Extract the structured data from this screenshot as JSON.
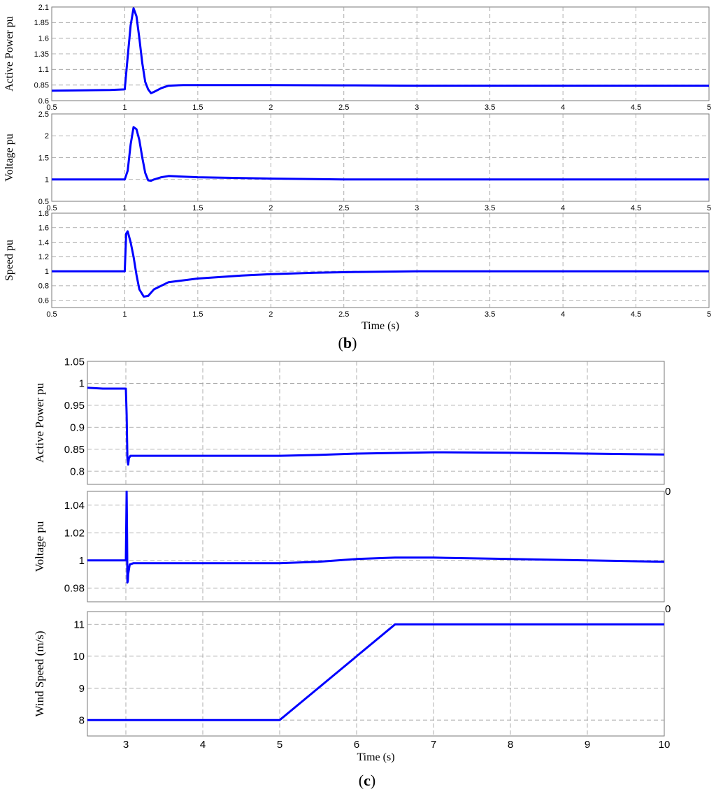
{
  "figure": {
    "group_b_label": "(b)",
    "group_b_letter": "b",
    "group_c_label": "(c)",
    "group_c_letter": "c"
  },
  "chart_data": [
    {
      "type": "line",
      "group": "b",
      "title": "",
      "xlabel": "",
      "ylabel": "Active Power pu",
      "xlim": [
        0.5,
        5
      ],
      "ylim": [
        0.6,
        2.1
      ],
      "grid": true,
      "x_ticks": [
        "0.5",
        "1",
        "1.5",
        "2",
        "2.5",
        "3",
        "3.5",
        "4",
        "4.5",
        "5"
      ],
      "y_ticks": [
        "0.6",
        "0.85",
        "1.1",
        "1.35",
        "1.6",
        "1.85",
        "2.1"
      ],
      "color": "#0000ff",
      "series": [
        {
          "x": [
            0.5,
            0.9,
            1.0,
            1.02,
            1.04,
            1.06,
            1.08,
            1.1,
            1.12,
            1.14,
            1.16,
            1.18,
            1.2,
            1.25,
            1.3,
            1.4,
            1.6,
            2.0,
            2.5,
            3.0,
            4.0,
            5.0
          ],
          "y": [
            0.76,
            0.77,
            0.78,
            1.3,
            1.8,
            2.08,
            1.95,
            1.6,
            1.2,
            0.9,
            0.78,
            0.72,
            0.74,
            0.8,
            0.84,
            0.85,
            0.85,
            0.85,
            0.845,
            0.84,
            0.84,
            0.84
          ]
        }
      ]
    },
    {
      "type": "line",
      "group": "b",
      "title": "",
      "xlabel": "",
      "ylabel": "Voltage pu",
      "xlim": [
        0.5,
        5
      ],
      "ylim": [
        0.5,
        2.5
      ],
      "grid": true,
      "x_ticks": [
        "0.5",
        "1",
        "1.5",
        "2",
        "2.5",
        "3",
        "3.5",
        "4",
        "4.5",
        "5"
      ],
      "y_ticks": [
        "0.5",
        "1",
        "1.5",
        "2",
        "2.5"
      ],
      "color": "#0000ff",
      "series": [
        {
          "x": [
            0.5,
            1.0,
            1.02,
            1.04,
            1.06,
            1.08,
            1.1,
            1.12,
            1.14,
            1.16,
            1.18,
            1.2,
            1.25,
            1.3,
            1.5,
            2.0,
            2.5,
            3.0,
            4.0,
            5.0
          ],
          "y": [
            1.0,
            1.0,
            1.2,
            1.8,
            2.2,
            2.15,
            1.9,
            1.5,
            1.15,
            0.98,
            0.97,
            1.0,
            1.05,
            1.08,
            1.05,
            1.02,
            1.0,
            1.0,
            1.0,
            1.0
          ]
        }
      ]
    },
    {
      "type": "line",
      "group": "b",
      "title": "",
      "xlabel": "Time (s)",
      "ylabel": "Speed pu",
      "xlim": [
        0.5,
        5
      ],
      "ylim": [
        0.5,
        1.8
      ],
      "grid": true,
      "x_ticks": [
        "0.5",
        "1",
        "1.5",
        "2",
        "2.5",
        "3",
        "3.5",
        "4",
        "4.5",
        "5"
      ],
      "y_ticks": [
        "0.6",
        "0.8",
        "1",
        "1.2",
        "1.4",
        "1.6",
        "1.8"
      ],
      "color": "#0000ff",
      "series": [
        {
          "x": [
            0.5,
            1.0,
            1.01,
            1.02,
            1.04,
            1.06,
            1.08,
            1.1,
            1.13,
            1.16,
            1.2,
            1.3,
            1.5,
            1.8,
            2.0,
            2.3,
            2.6,
            3.0,
            3.3,
            4.0,
            5.0
          ],
          "y": [
            1.0,
            1.0,
            1.52,
            1.55,
            1.4,
            1.2,
            0.95,
            0.75,
            0.65,
            0.66,
            0.75,
            0.85,
            0.9,
            0.94,
            0.96,
            0.98,
            0.99,
            1.0,
            1.0,
            1.0,
            1.0
          ]
        }
      ]
    },
    {
      "type": "line",
      "group": "c",
      "title": "",
      "xlabel": "",
      "ylabel": "Active Power pu",
      "xlim": [
        2.5,
        10
      ],
      "ylim": [
        0.77,
        1.05
      ],
      "grid": true,
      "x_ticks": [],
      "y_ticks": [
        "0.8",
        "0.85",
        "0.9",
        "0.95",
        "1",
        "1.05"
      ],
      "corner_label": "0",
      "color": "#0000ff",
      "series": [
        {
          "x": [
            2.5,
            2.7,
            3.0,
            3.01,
            3.02,
            3.03,
            3.04,
            3.06,
            3.1,
            4.0,
            5.0,
            5.5,
            6.0,
            7.0,
            8.0,
            9.0,
            10.0
          ],
          "y": [
            0.99,
            0.988,
            0.988,
            0.93,
            0.83,
            0.815,
            0.83,
            0.835,
            0.835,
            0.835,
            0.835,
            0.837,
            0.84,
            0.843,
            0.842,
            0.84,
            0.838
          ]
        }
      ]
    },
    {
      "type": "line",
      "group": "c",
      "title": "",
      "xlabel": "",
      "ylabel": "Voltage pu",
      "xlim": [
        2.5,
        10
      ],
      "ylim": [
        0.97,
        1.05
      ],
      "grid": true,
      "x_ticks": [],
      "y_ticks": [
        "0.98",
        "1",
        "1.02",
        "1.04"
      ],
      "corner_label": "0",
      "color": "#0000ff",
      "series": [
        {
          "x": [
            2.5,
            3.0,
            3.01,
            3.015,
            3.02,
            3.025,
            3.03,
            3.05,
            3.1,
            3.2,
            4.0,
            5.0,
            5.5,
            6.0,
            6.5,
            7.0,
            8.0,
            9.0,
            10.0
          ],
          "y": [
            1.0,
            1.0,
            1.05,
            1.02,
            0.984,
            0.985,
            0.99,
            0.997,
            0.998,
            0.998,
            0.998,
            0.998,
            0.999,
            1.001,
            1.002,
            1.002,
            1.001,
            1.0,
            0.999
          ]
        }
      ]
    },
    {
      "type": "line",
      "group": "c",
      "title": "",
      "xlabel": "Time (s)",
      "ylabel": "Wind Speed (m/s)",
      "xlim": [
        2.5,
        10
      ],
      "ylim": [
        7.5,
        11.4
      ],
      "grid": true,
      "x_ticks": [
        "3",
        "4",
        "5",
        "6",
        "7",
        "8",
        "9",
        "10"
      ],
      "y_ticks": [
        "8",
        "9",
        "10",
        "11"
      ],
      "color": "#0000ff",
      "series": [
        {
          "x": [
            2.5,
            5.0,
            6.5,
            10.0
          ],
          "y": [
            8,
            8,
            11,
            11
          ]
        }
      ]
    }
  ]
}
